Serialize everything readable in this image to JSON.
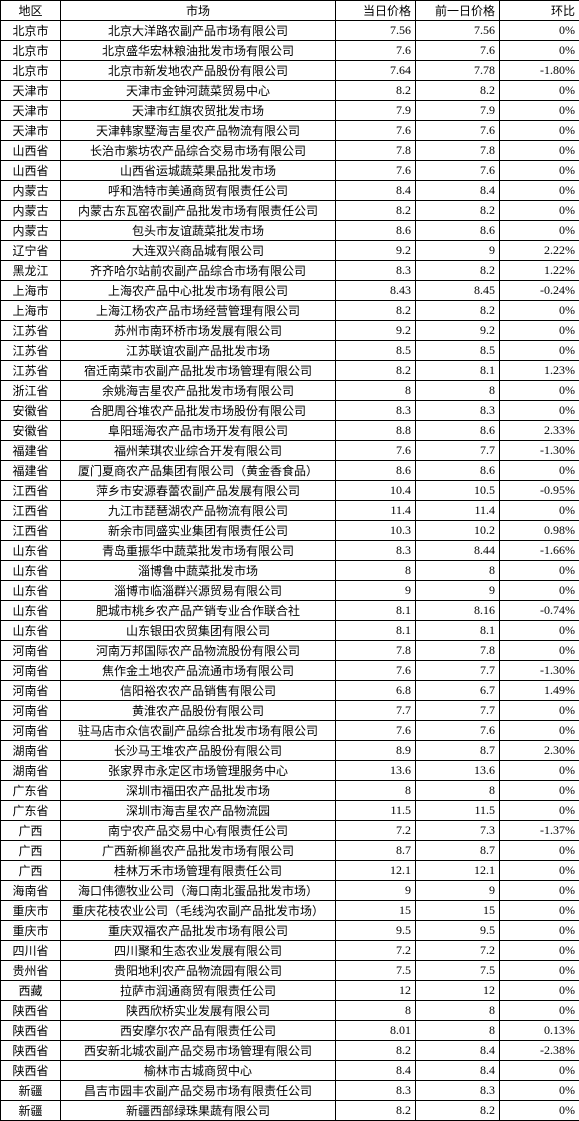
{
  "columns": [
    {
      "key": "region",
      "label": "地区",
      "class": "col-region"
    },
    {
      "key": "market",
      "label": "市场",
      "class": "col-market"
    },
    {
      "key": "today",
      "label": "当日价格",
      "class": "col-today"
    },
    {
      "key": "prev",
      "label": "前一日价格",
      "class": "col-prev"
    },
    {
      "key": "change",
      "label": "环比",
      "class": "col-change"
    }
  ],
  "rows": [
    {
      "region": "北京市",
      "market": "北京大洋路农副产品市场有限公司",
      "today": "7.56",
      "prev": "7.56",
      "change": "0%"
    },
    {
      "region": "北京市",
      "market": "北京盛华宏林粮油批发市场有限公司",
      "today": "7.6",
      "prev": "7.6",
      "change": "0%"
    },
    {
      "region": "北京市",
      "market": "北京市新发地农产品股份有限公司",
      "today": "7.64",
      "prev": "7.78",
      "change": "-1.80%"
    },
    {
      "region": "天津市",
      "market": "天津市金钟河蔬菜贸易中心",
      "today": "8.2",
      "prev": "8.2",
      "change": "0%"
    },
    {
      "region": "天津市",
      "market": "天津市红旗农贸批发市场",
      "today": "7.9",
      "prev": "7.9",
      "change": "0%"
    },
    {
      "region": "天津市",
      "market": "天津韩家墅海吉星农产品物流有限公司",
      "today": "7.6",
      "prev": "7.6",
      "change": "0%"
    },
    {
      "region": "山西省",
      "market": "长治市紫坊农产品综合交易市场有限公司",
      "today": "7.8",
      "prev": "7.8",
      "change": "0%"
    },
    {
      "region": "山西省",
      "market": "山西省运城蔬菜果品批发市场",
      "today": "7.6",
      "prev": "7.6",
      "change": "0%"
    },
    {
      "region": "内蒙古",
      "market": "呼和浩特市美通商贸有限责任公司",
      "today": "8.4",
      "prev": "8.4",
      "change": "0%"
    },
    {
      "region": "内蒙古",
      "market": "内蒙古东瓦窑农副产品批发市场有限责任公司",
      "today": "8.2",
      "prev": "8.2",
      "change": "0%"
    },
    {
      "region": "内蒙古",
      "market": "包头市友谊蔬菜批发市场",
      "today": "8.6",
      "prev": "8.6",
      "change": "0%"
    },
    {
      "region": "辽宁省",
      "market": "大连双兴商品城有限公司",
      "today": "9.2",
      "prev": "9",
      "change": "2.22%"
    },
    {
      "region": "黑龙江",
      "market": "齐齐哈尔站前农副产品综合市场有限公司",
      "today": "8.3",
      "prev": "8.2",
      "change": "1.22%"
    },
    {
      "region": "上海市",
      "market": "上海农产品中心批发市场有限公司",
      "today": "8.43",
      "prev": "8.45",
      "change": "-0.24%"
    },
    {
      "region": "上海市",
      "market": "上海江杨农产品市场经营管理有限公司",
      "today": "8.2",
      "prev": "8.2",
      "change": "0%"
    },
    {
      "region": "江苏省",
      "market": "苏州市南环桥市场发展有限公司",
      "today": "9.2",
      "prev": "9.2",
      "change": "0%"
    },
    {
      "region": "江苏省",
      "market": "江苏联谊农副产品批发市场",
      "today": "8.5",
      "prev": "8.5",
      "change": "0%"
    },
    {
      "region": "江苏省",
      "market": "宿迁南菜市农副产品批发市场管理有限公司",
      "today": "8.2",
      "prev": "8.1",
      "change": "1.23%"
    },
    {
      "region": "浙江省",
      "market": "余姚海吉星农产品批发市场有限公司",
      "today": "8",
      "prev": "8",
      "change": "0%"
    },
    {
      "region": "安徽省",
      "market": "合肥周谷堆农产品批发市场股份有限公司",
      "today": "8.3",
      "prev": "8.3",
      "change": "0%"
    },
    {
      "region": "安徽省",
      "market": "阜阳瑶海农产品市场开发有限公司",
      "today": "8.8",
      "prev": "8.6",
      "change": "2.33%"
    },
    {
      "region": "福建省",
      "market": "福州茉琪农业综合开发有限公司",
      "today": "7.6",
      "prev": "7.7",
      "change": "-1.30%"
    },
    {
      "region": "福建省",
      "market": "厦门夏商农产品集团有限公司（黄金香食品）",
      "today": "8.6",
      "prev": "8.6",
      "change": "0%"
    },
    {
      "region": "江西省",
      "market": "萍乡市安源春蕾农副产品发展有限公司",
      "today": "10.4",
      "prev": "10.5",
      "change": "-0.95%"
    },
    {
      "region": "江西省",
      "market": "九江市琵琶湖农产品物流有限公司",
      "today": "11.4",
      "prev": "11.4",
      "change": "0%"
    },
    {
      "region": "江西省",
      "market": "新余市同盛实业集团有限责任公司",
      "today": "10.3",
      "prev": "10.2",
      "change": "0.98%"
    },
    {
      "region": "山东省",
      "market": "青岛重振华中蔬菜批发市场有限公司",
      "today": "8.3",
      "prev": "8.44",
      "change": "-1.66%"
    },
    {
      "region": "山东省",
      "market": "淄博鲁中蔬菜批发市场",
      "today": "8",
      "prev": "8",
      "change": "0%"
    },
    {
      "region": "山东省",
      "market": "淄博市临淄群兴源贸易有限公司",
      "today": "9",
      "prev": "9",
      "change": "0%"
    },
    {
      "region": "山东省",
      "market": "肥城市桃乡农产品产销专业合作联合社",
      "today": "8.1",
      "prev": "8.16",
      "change": "-0.74%"
    },
    {
      "region": "山东省",
      "market": "山东银田农贸集团有限公司",
      "today": "8.1",
      "prev": "8.1",
      "change": "0%"
    },
    {
      "region": "河南省",
      "market": "河南万邦国际农产品物流股份有限公司",
      "today": "7.8",
      "prev": "7.8",
      "change": "0%"
    },
    {
      "region": "河南省",
      "market": "焦作金土地农产品流通市场有限公司",
      "today": "7.6",
      "prev": "7.7",
      "change": "-1.30%"
    },
    {
      "region": "河南省",
      "market": "信阳裕农农产品销售有限公司",
      "today": "6.8",
      "prev": "6.7",
      "change": "1.49%"
    },
    {
      "region": "河南省",
      "market": "黄淮农产品股份有限公司",
      "today": "7.7",
      "prev": "7.7",
      "change": "0%"
    },
    {
      "region": "河南省",
      "market": "驻马店市众信农副产品综合批发市场有限公司",
      "today": "7.6",
      "prev": "7.6",
      "change": "0%"
    },
    {
      "region": "湖南省",
      "market": "长沙马王堆农产品股份有限公司",
      "today": "8.9",
      "prev": "8.7",
      "change": "2.30%"
    },
    {
      "region": "湖南省",
      "market": "张家界市永定区市场管理服务中心",
      "today": "13.6",
      "prev": "13.6",
      "change": "0%"
    },
    {
      "region": "广东省",
      "market": "深圳市福田农产品批发市场",
      "today": "8",
      "prev": "8",
      "change": "0%"
    },
    {
      "region": "广东省",
      "market": "深圳市海吉星农产品物流园",
      "today": "11.5",
      "prev": "11.5",
      "change": "0%"
    },
    {
      "region": "广西",
      "market": "南宁农产品交易中心有限责任公司",
      "today": "7.2",
      "prev": "7.3",
      "change": "-1.37%"
    },
    {
      "region": "广西",
      "market": "广西新柳邕农产品批发市场有限公司",
      "today": "8.7",
      "prev": "8.7",
      "change": "0%"
    },
    {
      "region": "广西",
      "market": "桂林万禾市场管理有限责任公司",
      "today": "12.1",
      "prev": "12.1",
      "change": "0%"
    },
    {
      "region": "海南省",
      "market": "海口伟德牧业公司（海口南北蛋品批发市场）",
      "today": "9",
      "prev": "9",
      "change": "0%"
    },
    {
      "region": "重庆市",
      "market": "重庆花枝农业公司（毛线沟农副产品批发市场）",
      "today": "15",
      "prev": "15",
      "change": "0%"
    },
    {
      "region": "重庆市",
      "market": "重庆双福农产品批发市场有限公司",
      "today": "9.5",
      "prev": "9.5",
      "change": "0%"
    },
    {
      "region": "四川省",
      "market": "四川聚和生态农业发展有限公司",
      "today": "7.2",
      "prev": "7.2",
      "change": "0%"
    },
    {
      "region": "贵州省",
      "market": "贵阳地利农产品物流园有限公司",
      "today": "7.5",
      "prev": "7.5",
      "change": "0%"
    },
    {
      "region": "西藏",
      "market": "拉萨市润通商贸有限责任公司",
      "today": "12",
      "prev": "12",
      "change": "0%"
    },
    {
      "region": "陕西省",
      "market": "陕西欣桥实业发展有限公司",
      "today": "8",
      "prev": "8",
      "change": "0%"
    },
    {
      "region": "陕西省",
      "market": "西安摩尔农产品有限责任公司",
      "today": "8.01",
      "prev": "8",
      "change": "0.13%"
    },
    {
      "region": "陕西省",
      "market": "西安新北城农副产品交易市场管理有限公司",
      "today": "8.2",
      "prev": "8.4",
      "change": "-2.38%"
    },
    {
      "region": "陕西省",
      "market": "榆林市古城商贸中心",
      "today": "8.4",
      "prev": "8.4",
      "change": "0%"
    },
    {
      "region": "新疆",
      "market": "昌吉市园丰农副产品交易市场有限责任公司",
      "today": "8.3",
      "prev": "8.3",
      "change": "0%"
    },
    {
      "region": "新疆",
      "market": "新疆西部绿珠果蔬有限公司",
      "today": "8.2",
      "prev": "8.2",
      "change": "0%"
    }
  ]
}
